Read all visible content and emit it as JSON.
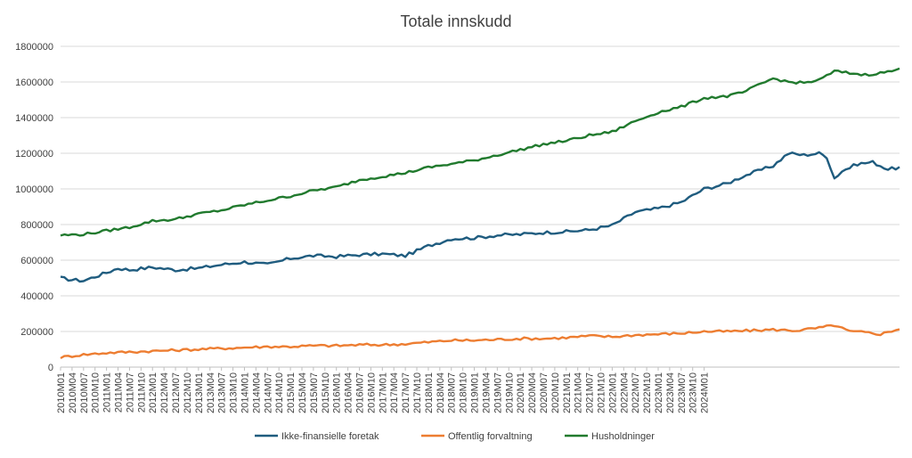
{
  "chart_data": {
    "type": "line",
    "title": "Totale innskudd",
    "xlabel": "",
    "ylabel": "",
    "ylim": [
      0,
      1800000
    ],
    "yticks": [
      "0",
      "200000",
      "400000",
      "600000",
      "800000",
      "1000000",
      "1200000",
      "1400000",
      "1600000",
      "1800000"
    ],
    "xticks": [
      "2010M01",
      "2010M04",
      "2010M07",
      "2010M10",
      "2011M01",
      "2011M04",
      "2011M07",
      "2011M10",
      "2012M01",
      "2012M04",
      "2012M07",
      "2012M10",
      "2013M01",
      "2013M04",
      "2013M07",
      "2013M10",
      "2014M01",
      "2014M04",
      "2014M07",
      "2014M10",
      "2015M01",
      "2015M04",
      "2015M07",
      "2015M10",
      "2016M01",
      "2016M04",
      "2016M07",
      "2016M10",
      "2017M01",
      "2017M04",
      "2017M07",
      "2017M10",
      "2018M01",
      "2018M04",
      "2018M07",
      "2018M10",
      "2019M01",
      "2019M04",
      "2019M07",
      "2019M10",
      "2020M01",
      "2020M04",
      "2020M07",
      "2020M10",
      "2021M01",
      "2021M04",
      "2021M07",
      "2021M10",
      "2022M01",
      "2022M04",
      "2022M07",
      "2022M10",
      "2023M01",
      "2023M04",
      "2023M07",
      "2023M10",
      "2024M01"
    ],
    "grid": true,
    "legend_position": "bottom",
    "series": [
      {
        "name": "Ikke-finansielle foretak",
        "color": "#1f5c7f",
        "keypoints": [
          [
            0,
            500000
          ],
          [
            3,
            490000
          ],
          [
            6,
            485000
          ],
          [
            12,
            530000
          ],
          [
            15,
            555000
          ],
          [
            18,
            545000
          ],
          [
            24,
            560000
          ],
          [
            30,
            545000
          ],
          [
            36,
            555000
          ],
          [
            42,
            575000
          ],
          [
            48,
            590000
          ],
          [
            54,
            575000
          ],
          [
            60,
            610000
          ],
          [
            66,
            625000
          ],
          [
            72,
            620000
          ],
          [
            78,
            630000
          ],
          [
            84,
            635000
          ],
          [
            90,
            625000
          ],
          [
            96,
            680000
          ],
          [
            102,
            720000
          ],
          [
            108,
            725000
          ],
          [
            114,
            740000
          ],
          [
            120,
            745000
          ],
          [
            126,
            755000
          ],
          [
            132,
            760000
          ],
          [
            138,
            770000
          ],
          [
            144,
            795000
          ],
          [
            150,
            870000
          ],
          [
            156,
            890000
          ],
          [
            162,
            925000
          ],
          [
            168,
            1000000
          ],
          [
            174,
            1030000
          ],
          [
            178,
            1070000
          ],
          [
            182,
            1100000
          ],
          [
            186,
            1130000
          ],
          [
            190,
            1200000
          ],
          [
            194,
            1190000
          ],
          [
            198,
            1200000
          ],
          [
            200,
            1180000
          ],
          [
            202,
            1060000
          ],
          [
            204,
            1100000
          ],
          [
            208,
            1140000
          ],
          [
            212,
            1150000
          ],
          [
            216,
            1110000
          ],
          [
            219,
            1120000
          ]
        ]
      },
      {
        "name": "Offentlig forvaltning",
        "color": "#ed7d31",
        "keypoints": [
          [
            0,
            55000
          ],
          [
            6,
            70000
          ],
          [
            12,
            80000
          ],
          [
            18,
            85000
          ],
          [
            24,
            90000
          ],
          [
            30,
            95000
          ],
          [
            36,
            100000
          ],
          [
            42,
            105000
          ],
          [
            48,
            110000
          ],
          [
            54,
            115000
          ],
          [
            60,
            115000
          ],
          [
            66,
            120000
          ],
          [
            72,
            120000
          ],
          [
            78,
            125000
          ],
          [
            84,
            125000
          ],
          [
            90,
            130000
          ],
          [
            96,
            140000
          ],
          [
            102,
            150000
          ],
          [
            108,
            150000
          ],
          [
            114,
            155000
          ],
          [
            120,
            160000
          ],
          [
            126,
            160000
          ],
          [
            132,
            165000
          ],
          [
            138,
            175000
          ],
          [
            144,
            170000
          ],
          [
            150,
            180000
          ],
          [
            156,
            185000
          ],
          [
            162,
            190000
          ],
          [
            168,
            200000
          ],
          [
            174,
            200000
          ],
          [
            180,
            205000
          ],
          [
            186,
            210000
          ],
          [
            192,
            205000
          ],
          [
            198,
            220000
          ],
          [
            202,
            235000
          ],
          [
            206,
            200000
          ],
          [
            210,
            195000
          ],
          [
            214,
            185000
          ],
          [
            219,
            215000
          ]
        ]
      },
      {
        "name": "Husholdninger",
        "color": "#217a2e",
        "keypoints": [
          [
            0,
            740000
          ],
          [
            6,
            745000
          ],
          [
            12,
            765000
          ],
          [
            18,
            785000
          ],
          [
            24,
            820000
          ],
          [
            30,
            830000
          ],
          [
            36,
            860000
          ],
          [
            42,
            880000
          ],
          [
            48,
            910000
          ],
          [
            54,
            935000
          ],
          [
            60,
            960000
          ],
          [
            66,
            990000
          ],
          [
            72,
            1010000
          ],
          [
            78,
            1050000
          ],
          [
            84,
            1070000
          ],
          [
            90,
            1090000
          ],
          [
            96,
            1120000
          ],
          [
            102,
            1140000
          ],
          [
            108,
            1160000
          ],
          [
            114,
            1190000
          ],
          [
            120,
            1220000
          ],
          [
            126,
            1250000
          ],
          [
            132,
            1270000
          ],
          [
            138,
            1300000
          ],
          [
            144,
            1320000
          ],
          [
            150,
            1380000
          ],
          [
            156,
            1430000
          ],
          [
            162,
            1460000
          ],
          [
            168,
            1510000
          ],
          [
            174,
            1520000
          ],
          [
            178,
            1540000
          ],
          [
            182,
            1580000
          ],
          [
            186,
            1620000
          ],
          [
            190,
            1600000
          ],
          [
            194,
            1595000
          ],
          [
            198,
            1610000
          ],
          [
            202,
            1660000
          ],
          [
            206,
            1650000
          ],
          [
            210,
            1640000
          ],
          [
            214,
            1650000
          ],
          [
            219,
            1670000
          ]
        ]
      }
    ]
  }
}
